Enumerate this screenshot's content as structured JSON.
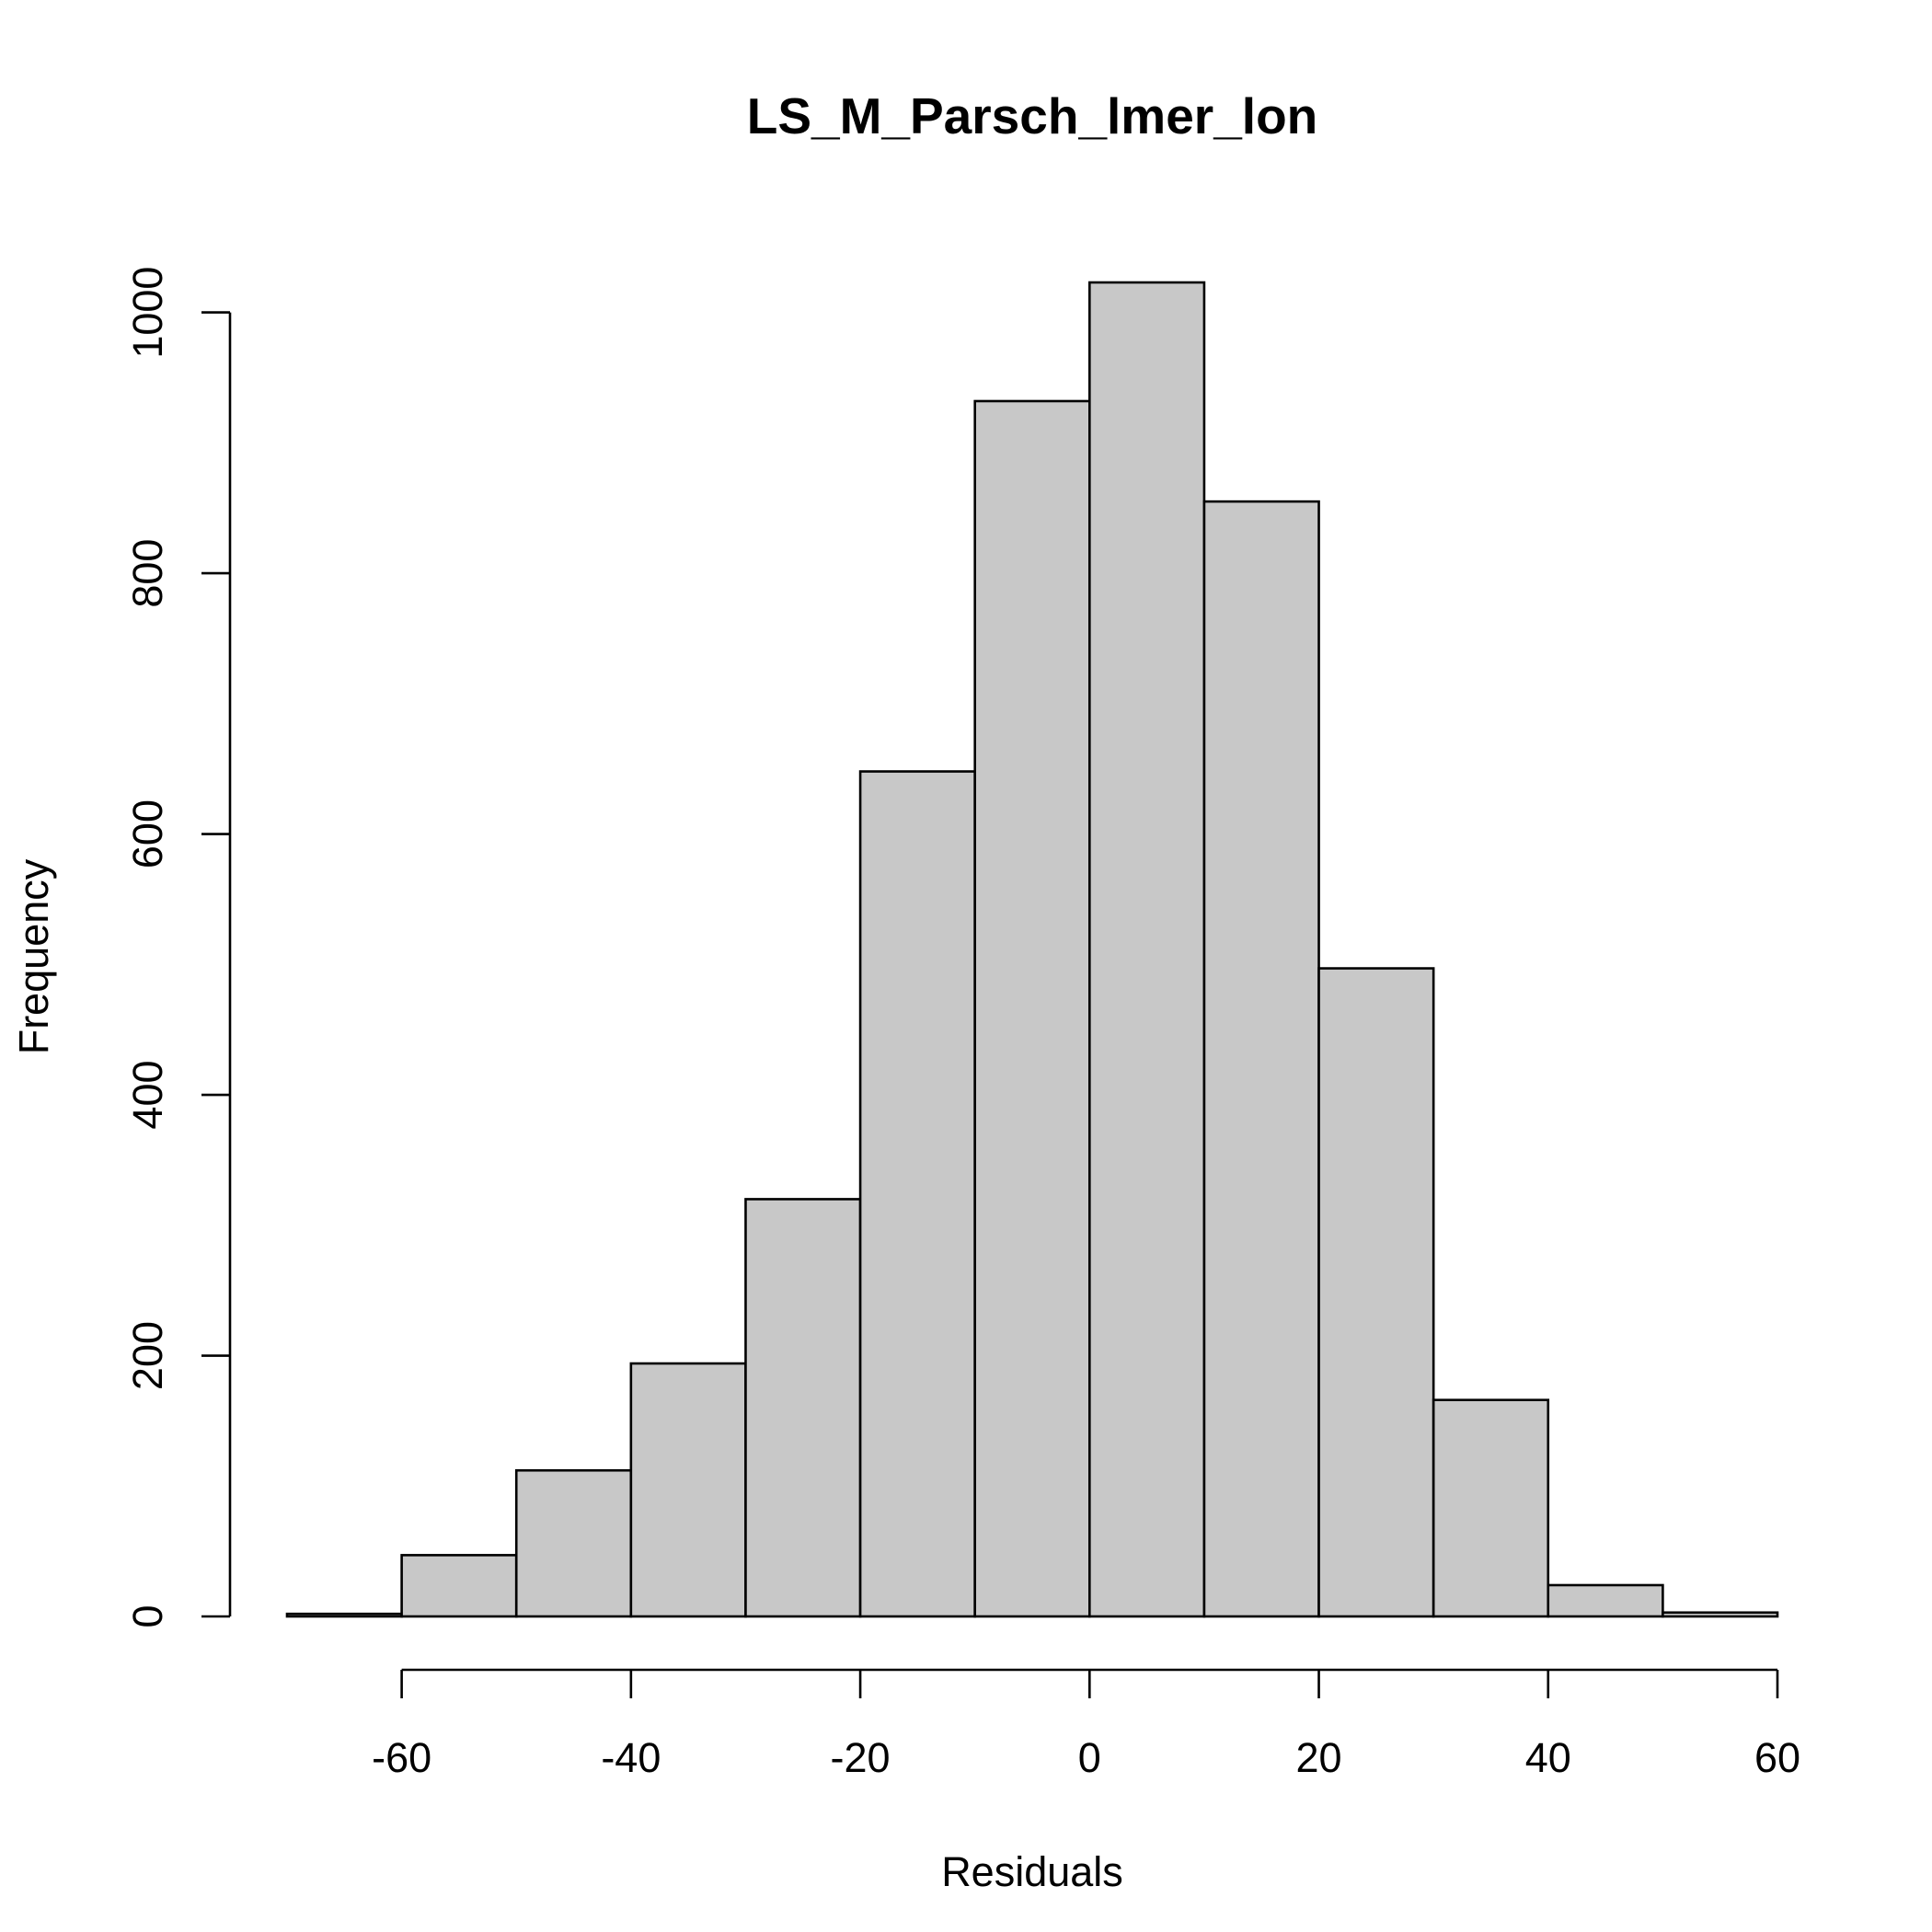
{
  "chart_data": {
    "type": "bar",
    "title": "LS_M_Parsch_lmer_lon",
    "xlabel": "Residuals",
    "ylabel": "Frequency",
    "bins": [
      {
        "x0": -70,
        "x1": -60,
        "count": 2
      },
      {
        "x0": -60,
        "x1": -50,
        "count": 47
      },
      {
        "x0": -50,
        "x1": -40,
        "count": 112
      },
      {
        "x0": -40,
        "x1": -30,
        "count": 194
      },
      {
        "x0": -30,
        "x1": -20,
        "count": 320
      },
      {
        "x0": -20,
        "x1": -10,
        "count": 648
      },
      {
        "x0": -10,
        "x1": 0,
        "count": 932
      },
      {
        "x0": 0,
        "x1": 10,
        "count": 1023
      },
      {
        "x0": 10,
        "x1": 20,
        "count": 855
      },
      {
        "x0": 20,
        "x1": 30,
        "count": 497
      },
      {
        "x0": 30,
        "x1": 40,
        "count": 166
      },
      {
        "x0": 40,
        "x1": 50,
        "count": 24
      },
      {
        "x0": 50,
        "x1": 60,
        "count": 3
      }
    ],
    "xticks": [
      "-60",
      "-40",
      "-20",
      "0",
      "20",
      "40",
      "60"
    ],
    "yticks": [
      "0",
      "200",
      "400",
      "600",
      "800",
      "1000"
    ],
    "xlim": [
      -70,
      60
    ],
    "ylim": [
      0,
      1023
    ],
    "grid": false
  }
}
